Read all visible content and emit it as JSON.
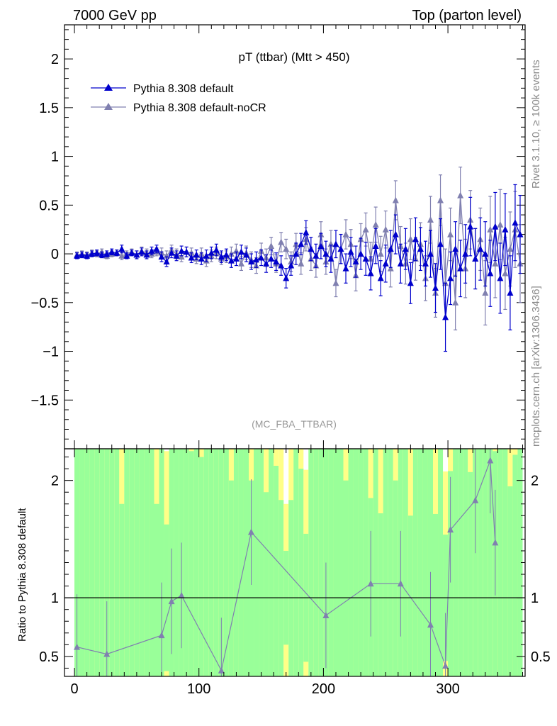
{
  "header": {
    "left_label": "7000 GeV pp",
    "right_label": "Top (parton level)"
  },
  "side_labels": {
    "rivet": "Rivet 3.1.10, ≥ 100k events",
    "mcplots": "mcplots.cern.ch [arXiv:1306.3436]"
  },
  "chart_data": [
    {
      "type": "scatter",
      "title": "pT (ttbar) (Mtt > 450)",
      "analysis_label": "(MC_FBA_TTBAR)",
      "xlim": [
        -8,
        362
      ],
      "ylim": [
        -2,
        2.35
      ],
      "y_ticks": [
        "2",
        "1.5",
        "1",
        "0.5",
        "0",
        "−0.5",
        "−1",
        "−1.5"
      ],
      "legend_position": "top-left",
      "colors": {
        "default": "#0000cc",
        "nocr": "#8080b0"
      },
      "series": [
        {
          "name": "Pythia 8.308 default",
          "color": "#0000cc",
          "x": [
            2,
            6,
            10,
            14,
            18,
            22,
            26,
            30,
            34,
            38,
            42,
            46,
            50,
            54,
            58,
            62,
            66,
            70,
            74,
            78,
            82,
            86,
            90,
            94,
            98,
            102,
            106,
            110,
            114,
            118,
            122,
            126,
            130,
            134,
            138,
            142,
            146,
            150,
            154,
            158,
            162,
            166,
            170,
            174,
            178,
            182,
            186,
            190,
            194,
            198,
            202,
            206,
            210,
            214,
            218,
            222,
            226,
            230,
            234,
            238,
            242,
            246,
            250,
            254,
            258,
            262,
            266,
            270,
            274,
            278,
            282,
            286,
            290,
            294,
            298,
            302,
            306,
            310,
            314,
            318,
            322,
            326,
            330,
            334,
            338,
            342,
            346,
            350,
            354,
            358
          ],
          "y": [
            -0.02,
            -0.01,
            -0.02,
            0.0,
            0.01,
            -0.01,
            0.0,
            0.02,
            0.01,
            0.05,
            -0.02,
            0.01,
            -0.01,
            0.02,
            -0.01,
            0.03,
            0.05,
            -0.03,
            -0.08,
            0.01,
            -0.02,
            0.03,
            0.02,
            -0.04,
            -0.01,
            -0.05,
            -0.02,
            0.01,
            0.04,
            -0.03,
            -0.01,
            -0.07,
            -0.05,
            0.02,
            -0.01,
            -0.08,
            -0.06,
            -0.04,
            -0.1,
            -0.05,
            -0.08,
            -0.12,
            -0.25,
            -0.12,
            0.0,
            0.1,
            0.22,
            0.05,
            -0.02,
            0.08,
            0.0,
            -0.05,
            0.1,
            0.05,
            -0.15,
            0.02,
            -0.08,
            0.0,
            -0.05,
            -0.2,
            0.08,
            -0.25,
            -0.1,
            0.05,
            0.2,
            -0.1,
            0.05,
            -0.3,
            0.15,
            0.05,
            -0.1,
            0.0,
            -0.35,
            0.1,
            -0.65,
            -0.25,
            0.05,
            -0.15,
            0.0,
            0.28,
            -0.05,
            0.05,
            0.0,
            -0.2,
            0.28,
            -0.25,
            0.25,
            -0.4,
            0.32,
            0.2
          ],
          "err": [
            0.03,
            0.03,
            0.03,
            0.03,
            0.03,
            0.03,
            0.03,
            0.03,
            0.03,
            0.04,
            0.03,
            0.03,
            0.04,
            0.04,
            0.04,
            0.04,
            0.04,
            0.05,
            0.05,
            0.05,
            0.05,
            0.05,
            0.05,
            0.05,
            0.05,
            0.06,
            0.06,
            0.06,
            0.06,
            0.06,
            0.06,
            0.07,
            0.07,
            0.07,
            0.07,
            0.08,
            0.08,
            0.08,
            0.09,
            0.09,
            0.09,
            0.1,
            0.1,
            0.1,
            0.11,
            0.11,
            0.12,
            0.12,
            0.12,
            0.13,
            0.13,
            0.14,
            0.14,
            0.15,
            0.15,
            0.15,
            0.16,
            0.16,
            0.17,
            0.17,
            0.18,
            0.18,
            0.19,
            0.19,
            0.2,
            0.2,
            0.21,
            0.21,
            0.22,
            0.22,
            0.23,
            0.24,
            0.25,
            0.26,
            0.35,
            0.27,
            0.28,
            0.29,
            0.3,
            0.3,
            0.31,
            0.32,
            0.33,
            0.34,
            0.35,
            0.36,
            0.37,
            0.38,
            0.39,
            0.4
          ]
        },
        {
          "name": "Pythia 8.308 default-noCR",
          "color": "#8080b0",
          "x": [
            2,
            6,
            10,
            14,
            18,
            22,
            26,
            30,
            34,
            38,
            42,
            46,
            50,
            54,
            58,
            62,
            66,
            70,
            74,
            78,
            82,
            86,
            90,
            94,
            98,
            102,
            106,
            110,
            114,
            118,
            122,
            126,
            130,
            134,
            138,
            142,
            146,
            150,
            154,
            158,
            162,
            166,
            170,
            174,
            178,
            182,
            186,
            190,
            194,
            198,
            202,
            206,
            210,
            214,
            218,
            222,
            226,
            230,
            234,
            238,
            242,
            246,
            250,
            254,
            258,
            262,
            266,
            270,
            274,
            278,
            282,
            286,
            290,
            294,
            298,
            302,
            306,
            310,
            314,
            318,
            322,
            326,
            330,
            334,
            338,
            342,
            346,
            350,
            354,
            358
          ],
          "y": [
            -0.01,
            0.0,
            -0.01,
            0.01,
            0.0,
            0.02,
            -0.02,
            0.0,
            0.01,
            -0.02,
            0.0,
            0.02,
            -0.01,
            0.03,
            0.01,
            0.0,
            0.02,
            0.01,
            -0.02,
            0.04,
            0.0,
            -0.03,
            0.02,
            0.01,
            -0.05,
            0.0,
            -0.07,
            -0.02,
            0.01,
            -0.05,
            -0.03,
            0.0,
            0.03,
            -0.1,
            0.01,
            -0.06,
            -0.12,
            0.03,
            -0.04,
            0.08,
            -0.1,
            0.12,
            0.05,
            -0.08,
            0.1,
            -0.1,
            0.15,
            -0.05,
            -0.12,
            0.2,
            -0.08,
            0.1,
            -0.3,
            0.05,
            0.2,
            0.1,
            -0.22,
            0.15,
            0.25,
            -0.05,
            0.3,
            0.0,
            0.25,
            -0.15,
            0.55,
            0.08,
            -0.1,
            0.15,
            -0.05,
            0.1,
            -0.25,
            0.35,
            -0.4,
            0.55,
            -0.3,
            0.2,
            -0.5,
            0.6,
            -0.15,
            0.35,
            -0.05,
            0.15,
            -0.4,
            0.25,
            -0.1,
            0.3,
            -0.2,
            0.05,
            0.25,
            -0.1
          ],
          "err": [
            0.03,
            0.03,
            0.03,
            0.03,
            0.03,
            0.03,
            0.03,
            0.03,
            0.03,
            0.04,
            0.03,
            0.03,
            0.04,
            0.04,
            0.04,
            0.04,
            0.04,
            0.05,
            0.05,
            0.05,
            0.05,
            0.05,
            0.05,
            0.05,
            0.05,
            0.06,
            0.06,
            0.06,
            0.06,
            0.06,
            0.06,
            0.07,
            0.07,
            0.07,
            0.07,
            0.08,
            0.08,
            0.08,
            0.09,
            0.09,
            0.09,
            0.1,
            0.1,
            0.1,
            0.11,
            0.11,
            0.12,
            0.12,
            0.12,
            0.13,
            0.13,
            0.14,
            0.14,
            0.15,
            0.15,
            0.15,
            0.16,
            0.16,
            0.17,
            0.17,
            0.18,
            0.18,
            0.19,
            0.19,
            0.2,
            0.2,
            0.21,
            0.21,
            0.22,
            0.22,
            0.23,
            0.24,
            0.25,
            0.26,
            0.35,
            0.27,
            0.28,
            0.29,
            0.3,
            0.3,
            0.31,
            0.32,
            0.33,
            0.34,
            0.35,
            0.36,
            0.37,
            0.38,
            0.39,
            0.4
          ]
        }
      ]
    },
    {
      "type": "scatter",
      "ylabel": "Ratio to Pythia 8.308 default",
      "xlim": [
        -8,
        362
      ],
      "ylim": [
        0.33,
        2.27
      ],
      "x_ticks": [
        "0",
        "100",
        "200",
        "300"
      ],
      "y_ticks": [
        "2",
        "1",
        "0.5"
      ],
      "reference_line": 1,
      "band_colors": {
        "inner": "#99ff99",
        "outer": "#ffff88"
      },
      "series": [
        {
          "name": "Pythia 8.308 default-noCR",
          "color": "#8080b0",
          "x": [
            2,
            26,
            70,
            78,
            86,
            118,
            142,
            202,
            238,
            262,
            286,
            298,
            302,
            322,
            334,
            338
          ],
          "y": [
            0.58,
            0.52,
            0.68,
            0.97,
            1.02,
            0.38,
            1.56,
            0.85,
            1.12,
            1.12,
            0.77,
            0.42,
            1.58,
            1.83,
            2.17,
            1.47
          ]
        }
      ]
    }
  ]
}
